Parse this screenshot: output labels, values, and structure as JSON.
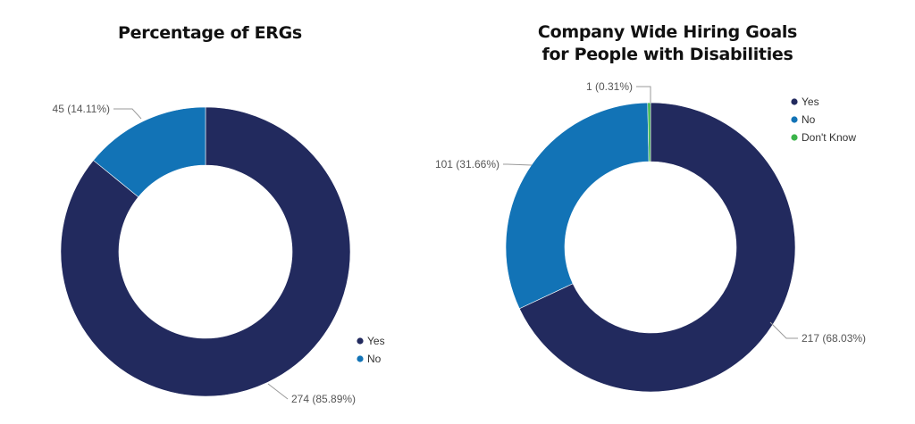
{
  "chart_data": [
    {
      "type": "pie",
      "title": "Percentage of ERGs",
      "subtitle": "",
      "donut": true,
      "categories": [
        "Yes",
        "No"
      ],
      "values": [
        274,
        45
      ],
      "percent_labels": [
        "85.89%",
        "14.11%"
      ],
      "data_labels": [
        "274 (85.89%)",
        "45 (14.11%)"
      ],
      "colors": [
        "#222a5e",
        "#1273b6"
      ],
      "legend": {
        "entries": [
          "Yes",
          "No"
        ],
        "placement": "bottom-right"
      }
    },
    {
      "type": "pie",
      "title": "Company Wide Hiring Goals for People with Disabilities",
      "title_lines": [
        "Company Wide Hiring Goals",
        "for People with Disabilities"
      ],
      "donut": true,
      "categories": [
        "Yes",
        "No",
        "Don't Know"
      ],
      "values": [
        217,
        101,
        1
      ],
      "percent_labels": [
        "68.03%",
        "31.66%",
        "0.31%"
      ],
      "data_labels": [
        "217 (68.03%)",
        "101 (31.66%)",
        "1 (0.31%)"
      ],
      "colors": [
        "#222a5e",
        "#1273b6",
        "#3bb44a"
      ],
      "legend": {
        "entries": [
          "Yes",
          "No",
          "Don't Know"
        ],
        "placement": "top-right"
      }
    }
  ]
}
